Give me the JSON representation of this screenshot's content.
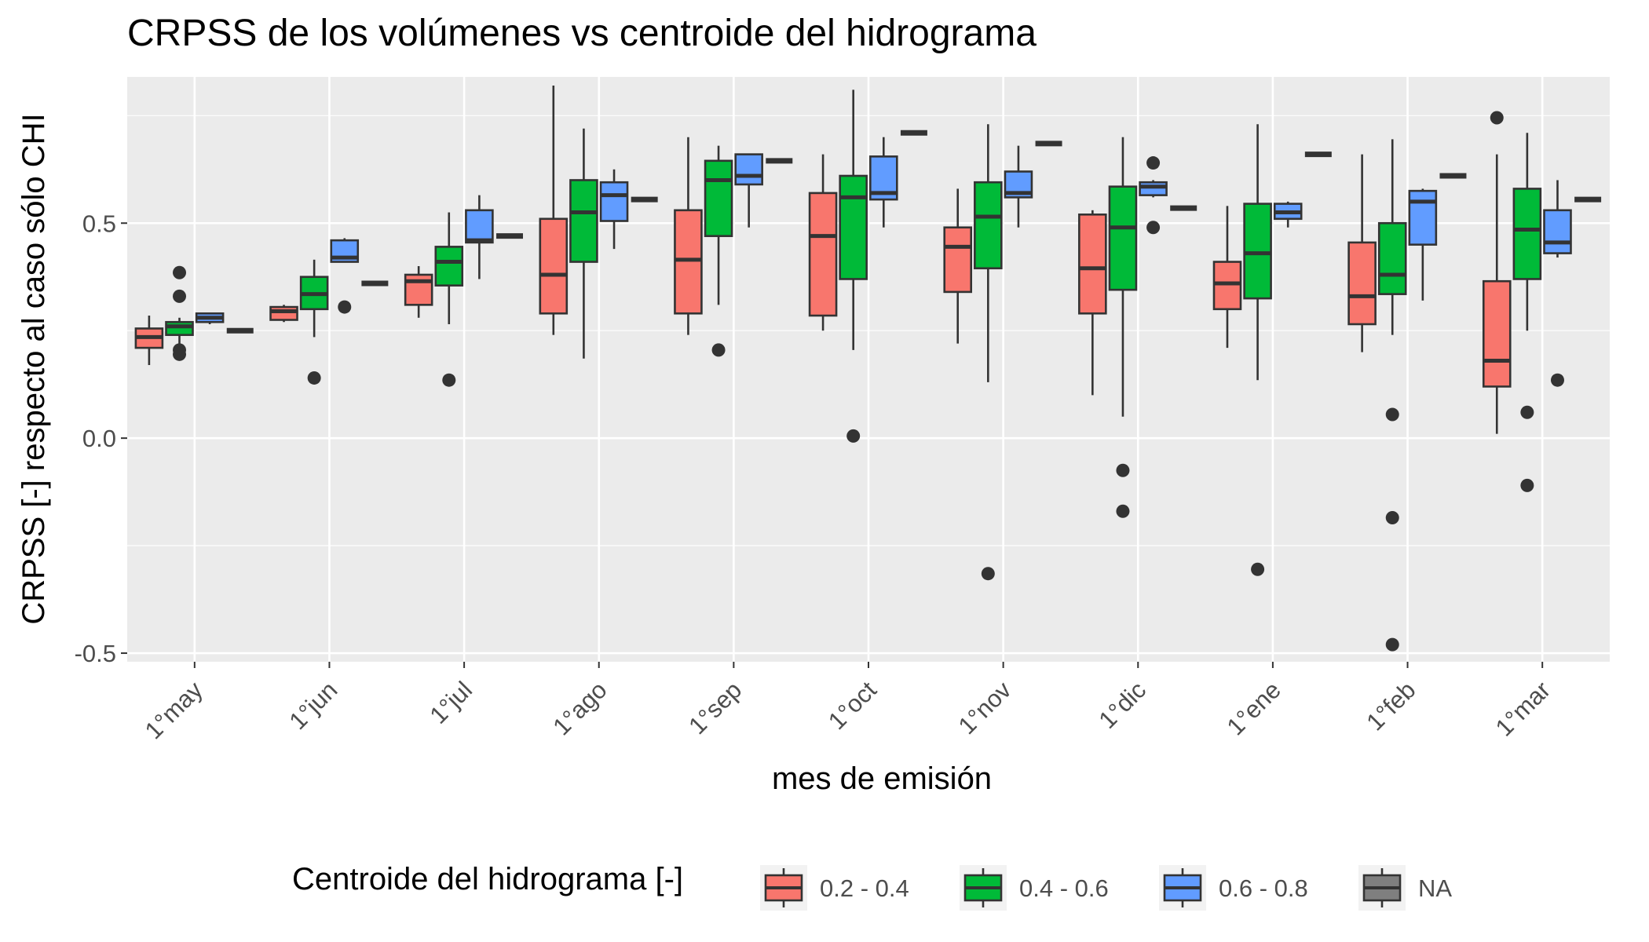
{
  "chart_data": {
    "type": "boxplot",
    "title": "CRPSS de los volúmenes vs centroide del hidrograma",
    "xlabel": "mes de emisión",
    "ylabel": "CRPSS [-] respecto al caso sólo CHI",
    "ylim": [
      -0.52,
      0.84
    ],
    "yticks": [
      -0.5,
      0.0,
      0.5
    ],
    "ytick_labels": [
      "-0.5",
      "0.0",
      "0.5"
    ],
    "grid": true,
    "legend_position": "bottom",
    "legend_title": "Centroide del hidrograma [-]",
    "categories": [
      "1°may",
      "1°jun",
      "1°jul",
      "1°ago",
      "1°sep",
      "1°oct",
      "1°nov",
      "1°dic",
      "1°ene",
      "1°feb",
      "1°mar"
    ],
    "series": [
      {
        "name": "0.2 - 0.4",
        "color": "#F8766D",
        "boxes": [
          {
            "min": 0.17,
            "q1": 0.21,
            "median": 0.235,
            "q3": 0.255,
            "max": 0.285,
            "outliers": []
          },
          {
            "min": 0.27,
            "q1": 0.275,
            "median": 0.295,
            "q3": 0.305,
            "max": 0.31,
            "outliers": []
          },
          {
            "min": 0.28,
            "q1": 0.31,
            "median": 0.365,
            "q3": 0.38,
            "max": 0.4,
            "outliers": []
          },
          {
            "min": 0.24,
            "q1": 0.29,
            "median": 0.38,
            "q3": 0.51,
            "max": 0.82,
            "outliers": []
          },
          {
            "min": 0.24,
            "q1": 0.29,
            "median": 0.415,
            "q3": 0.53,
            "max": 0.7,
            "outliers": []
          },
          {
            "min": 0.25,
            "q1": 0.285,
            "median": 0.47,
            "q3": 0.57,
            "max": 0.66,
            "outliers": []
          },
          {
            "min": 0.22,
            "q1": 0.34,
            "median": 0.445,
            "q3": 0.49,
            "max": 0.58,
            "outliers": []
          },
          {
            "min": 0.1,
            "q1": 0.29,
            "median": 0.395,
            "q3": 0.52,
            "max": 0.53,
            "outliers": []
          },
          {
            "min": 0.21,
            "q1": 0.3,
            "median": 0.36,
            "q3": 0.41,
            "max": 0.54,
            "outliers": []
          },
          {
            "min": 0.2,
            "q1": 0.265,
            "median": 0.33,
            "q3": 0.455,
            "max": 0.66,
            "outliers": []
          },
          {
            "min": 0.01,
            "q1": 0.12,
            "median": 0.18,
            "q3": 0.365,
            "max": 0.66,
            "outliers": [
              0.745
            ]
          }
        ]
      },
      {
        "name": "0.4 - 0.6",
        "color": "#00BA38",
        "boxes": [
          {
            "min": 0.22,
            "q1": 0.24,
            "median": 0.26,
            "q3": 0.27,
            "max": 0.28,
            "outliers": [
              0.385,
              0.33,
              0.205,
              0.195
            ]
          },
          {
            "min": 0.235,
            "q1": 0.3,
            "median": 0.335,
            "q3": 0.375,
            "max": 0.415,
            "outliers": [
              0.14
            ]
          },
          {
            "min": 0.265,
            "q1": 0.355,
            "median": 0.41,
            "q3": 0.445,
            "max": 0.525,
            "outliers": [
              0.135
            ]
          },
          {
            "min": 0.185,
            "q1": 0.41,
            "median": 0.525,
            "q3": 0.6,
            "max": 0.72,
            "outliers": []
          },
          {
            "min": 0.31,
            "q1": 0.47,
            "median": 0.6,
            "q3": 0.645,
            "max": 0.68,
            "outliers": [
              0.205
            ]
          },
          {
            "min": 0.205,
            "q1": 0.37,
            "median": 0.56,
            "q3": 0.61,
            "max": 0.81,
            "outliers": [
              0.005
            ]
          },
          {
            "min": 0.13,
            "q1": 0.395,
            "median": 0.515,
            "q3": 0.595,
            "max": 0.73,
            "outliers": [
              -0.315
            ]
          },
          {
            "min": 0.05,
            "q1": 0.345,
            "median": 0.49,
            "q3": 0.585,
            "max": 0.7,
            "outliers": [
              -0.075,
              -0.17
            ]
          },
          {
            "min": 0.135,
            "q1": 0.325,
            "median": 0.43,
            "q3": 0.545,
            "max": 0.73,
            "outliers": [
              -0.305
            ]
          },
          {
            "min": 0.24,
            "q1": 0.335,
            "median": 0.38,
            "q3": 0.5,
            "max": 0.695,
            "outliers": [
              0.055,
              -0.185,
              -0.48
            ]
          },
          {
            "min": 0.25,
            "q1": 0.37,
            "median": 0.485,
            "q3": 0.58,
            "max": 0.71,
            "outliers": [
              0.06,
              -0.11
            ]
          }
        ]
      },
      {
        "name": "0.6 - 0.8",
        "color": "#619CFF",
        "boxes": null
      },
      {
        "name": "NA",
        "color": "#7F7F7F",
        "boxes": null
      }
    ],
    "series_blue_boxes": [
      {
        "index": 0,
        "min": 0.265,
        "q1": 0.27,
        "median": 0.28,
        "q3": 0.29,
        "max": 0.29,
        "outliers": []
      },
      {
        "index": 1,
        "min": 0.41,
        "q1": 0.41,
        "median": 0.42,
        "q3": 0.46,
        "max": 0.465,
        "outliers": [
          0.305
        ]
      },
      {
        "index": 2,
        "min": 0.37,
        "q1": 0.455,
        "median": 0.46,
        "q3": 0.53,
        "max": 0.565,
        "outliers": []
      },
      {
        "index": 3,
        "min": 0.44,
        "q1": 0.505,
        "median": 0.565,
        "q3": 0.595,
        "max": 0.625,
        "outliers": []
      },
      {
        "index": 4,
        "min": 0.49,
        "q1": 0.59,
        "median": 0.61,
        "q3": 0.66,
        "max": 0.66,
        "outliers": []
      },
      {
        "index": 5,
        "min": 0.49,
        "q1": 0.555,
        "median": 0.57,
        "q3": 0.655,
        "max": 0.7,
        "outliers": []
      },
      {
        "index": 6,
        "min": 0.49,
        "q1": 0.56,
        "median": 0.57,
        "q3": 0.62,
        "max": 0.68,
        "outliers": []
      },
      {
        "index": 7,
        "min": 0.56,
        "q1": 0.565,
        "median": 0.585,
        "q3": 0.595,
        "max": 0.6,
        "outliers": [
          0.64,
          0.49
        ]
      },
      {
        "index": 8,
        "min": 0.49,
        "q1": 0.51,
        "median": 0.525,
        "q3": 0.545,
        "max": 0.55,
        "outliers": []
      },
      {
        "index": 9,
        "min": 0.32,
        "q1": 0.45,
        "median": 0.55,
        "q3": 0.575,
        "max": 0.58,
        "outliers": []
      },
      {
        "index": 10,
        "min": 0.42,
        "q1": 0.43,
        "median": 0.455,
        "q3": 0.53,
        "max": 0.6,
        "outliers": [
          0.135
        ]
      }
    ],
    "series_na_values": [
      0.25,
      0.36,
      0.47,
      0.555,
      0.645,
      0.71,
      0.685,
      0.535,
      0.66,
      0.61,
      0.555
    ]
  }
}
